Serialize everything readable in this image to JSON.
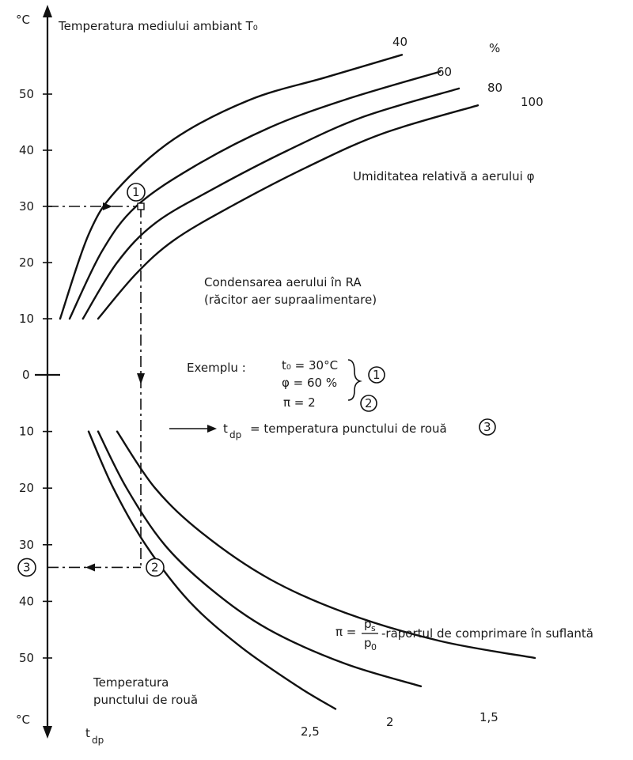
{
  "chart_data": {
    "type": "line",
    "upper": {
      "title": "Temperatura mediului ambiant T₀",
      "unit": "°C",
      "y_ticks": [
        "50",
        "40",
        "30",
        "20",
        "10"
      ],
      "ylim": [
        0,
        55
      ],
      "series_legend": "Umiditatea relativă a aerului φ",
      "percent_symbol": "%",
      "series": [
        {
          "name": "40",
          "points": [
            [
              0,
              10
            ],
            [
              0.15,
              25
            ],
            [
              0.3,
              33
            ],
            [
              0.6,
              42
            ],
            [
              1.0,
              49
            ],
            [
              1.4,
              53
            ],
            [
              1.8,
              57
            ]
          ]
        },
        {
          "name": "60",
          "points": [
            [
              0.05,
              10
            ],
            [
              0.22,
              22
            ],
            [
              0.4,
              30
            ],
            [
              0.7,
              37
            ],
            [
              1.1,
              44
            ],
            [
              1.5,
              49
            ],
            [
              2.0,
              54
            ]
          ]
        },
        {
          "name": "80",
          "points": [
            [
              0.12,
              10
            ],
            [
              0.3,
              20
            ],
            [
              0.5,
              27
            ],
            [
              0.8,
              33
            ],
            [
              1.2,
              40
            ],
            [
              1.6,
              46
            ],
            [
              2.1,
              51
            ]
          ]
        },
        {
          "name": "100",
          "points": [
            [
              0.2,
              10
            ],
            [
              0.4,
              18
            ],
            [
              0.6,
              24
            ],
            [
              0.9,
              30
            ],
            [
              1.3,
              37
            ],
            [
              1.7,
              43
            ],
            [
              2.2,
              48
            ]
          ]
        }
      ]
    },
    "lower": {
      "title_line1": "Temperatura",
      "title_line2": "punctului de rouă",
      "axis_symbol": "t",
      "axis_subscript": "dp",
      "unit": "°C",
      "y_ticks": [
        "10",
        "20",
        "30",
        "40",
        "50"
      ],
      "ylim": [
        0,
        55
      ],
      "series_legend_prefix": "π =",
      "series_legend_num": "p",
      "series_legend_num_sub": "s",
      "series_legend_den": "p",
      "series_legend_den_sub": "0",
      "series_legend_suffix": "-raportul de comprimare în suflantă",
      "series": [
        {
          "name": "1,5",
          "points": [
            [
              0.3,
              10
            ],
            [
              0.5,
              20
            ],
            [
              0.75,
              28
            ],
            [
              1.1,
              36
            ],
            [
              1.5,
              42
            ],
            [
              2.0,
              47
            ],
            [
              2.5,
              50
            ]
          ]
        },
        {
          "name": "2",
          "points": [
            [
              0.2,
              10
            ],
            [
              0.35,
              20
            ],
            [
              0.55,
              30
            ],
            [
              0.8,
              38
            ],
            [
              1.1,
              45
            ],
            [
              1.5,
              51
            ],
            [
              1.9,
              55
            ]
          ]
        },
        {
          "name": "2,5",
          "points": [
            [
              0.15,
              10
            ],
            [
              0.28,
              20
            ],
            [
              0.45,
              30
            ],
            [
              0.68,
              40
            ],
            [
              0.95,
              48
            ],
            [
              1.25,
              55
            ],
            [
              1.45,
              59
            ]
          ]
        }
      ]
    },
    "zero_tick": "0",
    "unit_top": "°C",
    "unit_bottom": "°C",
    "middle_label_line1": "Condensarea aerului în RA",
    "middle_label_line2": "(răcitor aer supraalimentare)",
    "example": {
      "title": "Exemplu :",
      "line1": "t₀ = 30°C",
      "line2": "φ = 60 %",
      "line3": "π = 2",
      "marker1": "1",
      "marker2": "2",
      "marker3": "3",
      "result_prefix": "t",
      "result_sub": "dp",
      "result_text": "= temperatura punctului de rouă"
    },
    "annotations": {
      "point1_label": "1",
      "point2_label": "2",
      "point3_label": "3",
      "t0_example": 30,
      "tdp_example": 34
    }
  }
}
